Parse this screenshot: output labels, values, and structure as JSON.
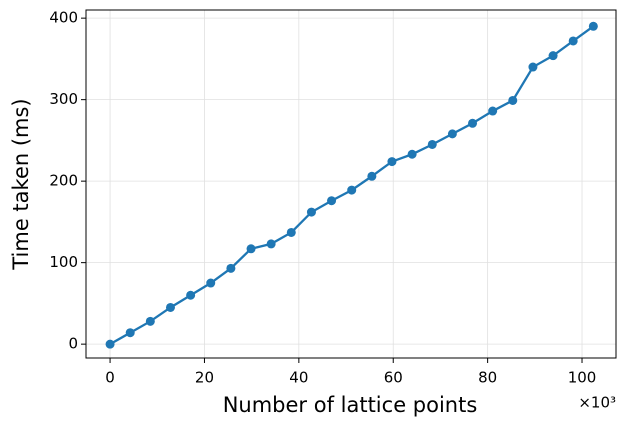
{
  "chart_data": {
    "type": "line",
    "x_label": "Number of lattice points",
    "y_label": "Time taken (ms)",
    "x_offset_label": "×10³",
    "x": [
      0,
      4.27,
      8.53,
      12.8,
      17.07,
      21.33,
      25.6,
      29.87,
      34.13,
      38.4,
      42.67,
      46.93,
      51.2,
      55.47,
      59.73,
      64,
      68.27,
      72.53,
      76.8,
      81.07,
      85.33,
      89.6,
      93.87,
      98.13,
      102.4
    ],
    "series": [
      {
        "name": "Time taken",
        "color": "#1f77b4",
        "values": [
          0,
          14,
          28,
          45,
          60,
          75,
          93,
          117,
          123,
          137,
          162,
          176,
          189,
          206,
          224,
          233,
          245,
          258,
          271,
          286,
          299,
          340,
          354,
          372,
          390
        ]
      }
    ],
    "xlim": [
      -5.1,
      107.2
    ],
    "ylim": [
      -17,
      410
    ],
    "xticks": [
      0,
      20,
      40,
      60,
      80,
      100
    ],
    "yticks": [
      0,
      100,
      200,
      300,
      400
    ],
    "grid": true,
    "markers": true
  }
}
